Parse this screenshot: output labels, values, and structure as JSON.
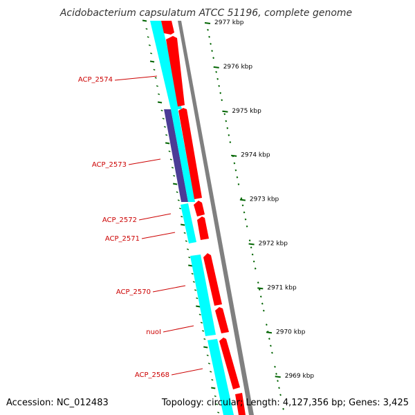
{
  "title": "Acidobacterium capsulatum ATCC 51196, complete genome",
  "footer": {
    "accession": "Accession: NC_012483",
    "stats": "Topology: circular; Length: 4,127,356 bp; Genes: 3,425"
  },
  "colors": {
    "forward_cds": "#ff0000",
    "reverse_cds": "#00ffff",
    "rna_feature": "#4b3c96",
    "backbone": "#808080",
    "ticks": "#006400",
    "label": "#cc0000",
    "title": "#333333"
  },
  "scale_ticks": [
    {
      "label": "2977 kbp"
    },
    {
      "label": "2976 kbp"
    },
    {
      "label": "2975 kbp"
    },
    {
      "label": "2974 kbp"
    },
    {
      "label": "2973 kbp"
    },
    {
      "label": "2972 kbp"
    },
    {
      "label": "2971 kbp"
    },
    {
      "label": "2970 kbp"
    },
    {
      "label": "2969 kbp"
    }
  ],
  "gene_labels": [
    {
      "name": "ACP_2574"
    },
    {
      "name": "ACP_2573"
    },
    {
      "name": "ACP_2572"
    },
    {
      "name": "ACP_2571"
    },
    {
      "name": "ACP_2570"
    },
    {
      "name": "nuoI"
    },
    {
      "name": "ACP_2568"
    }
  ]
}
